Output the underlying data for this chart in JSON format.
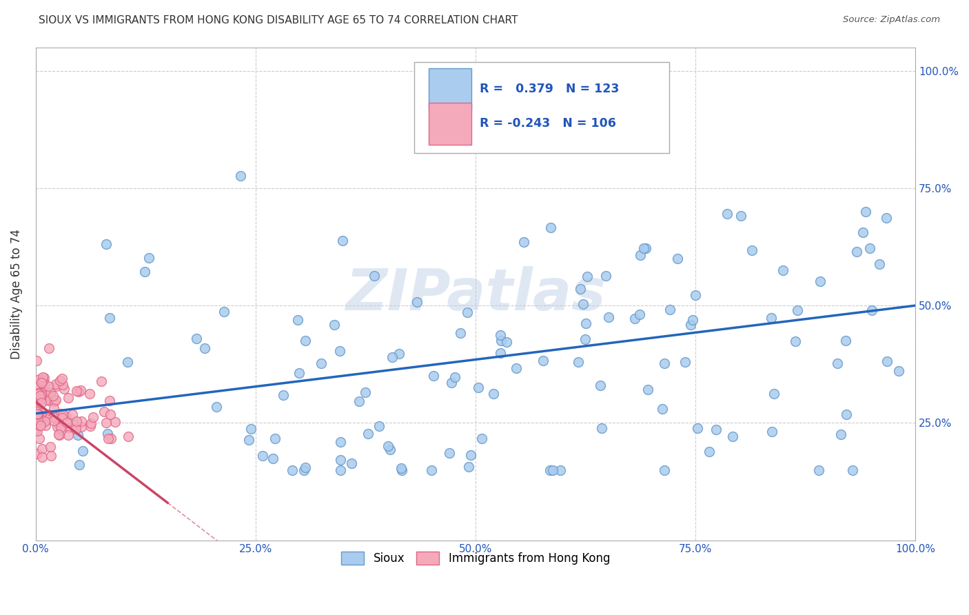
{
  "title": "SIOUX VS IMMIGRANTS FROM HONG KONG DISABILITY AGE 65 TO 74 CORRELATION CHART",
  "source": "Source: ZipAtlas.com",
  "ylabel": "Disability Age 65 to 74",
  "xlim": [
    0.0,
    1.0
  ],
  "ylim": [
    0.0,
    1.05
  ],
  "xtick_labels": [
    "0.0%",
    "25.0%",
    "50.0%",
    "75.0%",
    "100.0%"
  ],
  "xtick_vals": [
    0.0,
    0.25,
    0.5,
    0.75,
    1.0
  ],
  "ytick_labels": [
    "25.0%",
    "50.0%",
    "75.0%",
    "100.0%"
  ],
  "ytick_vals": [
    0.25,
    0.5,
    0.75,
    1.0
  ],
  "sioux_color": "#aaccee",
  "sioux_edge_color": "#6699cc",
  "hk_color": "#f4aabb",
  "hk_edge_color": "#e06688",
  "sioux_R": 0.379,
  "sioux_N": 123,
  "hk_R": -0.243,
  "hk_N": 106,
  "sioux_line_color": "#2266bb",
  "hk_line_color": "#cc4466",
  "watermark": "ZIPatlas",
  "legend_text_color": "#2255bb",
  "background_color": "#ffffff",
  "grid_color": "#cccccc",
  "title_fontsize": 11,
  "sioux_line_start_y": 0.27,
  "sioux_line_end_y": 0.5,
  "hk_line_start_y": 0.295,
  "hk_line_end_y": 0.08,
  "hk_line_end_x": 0.15
}
